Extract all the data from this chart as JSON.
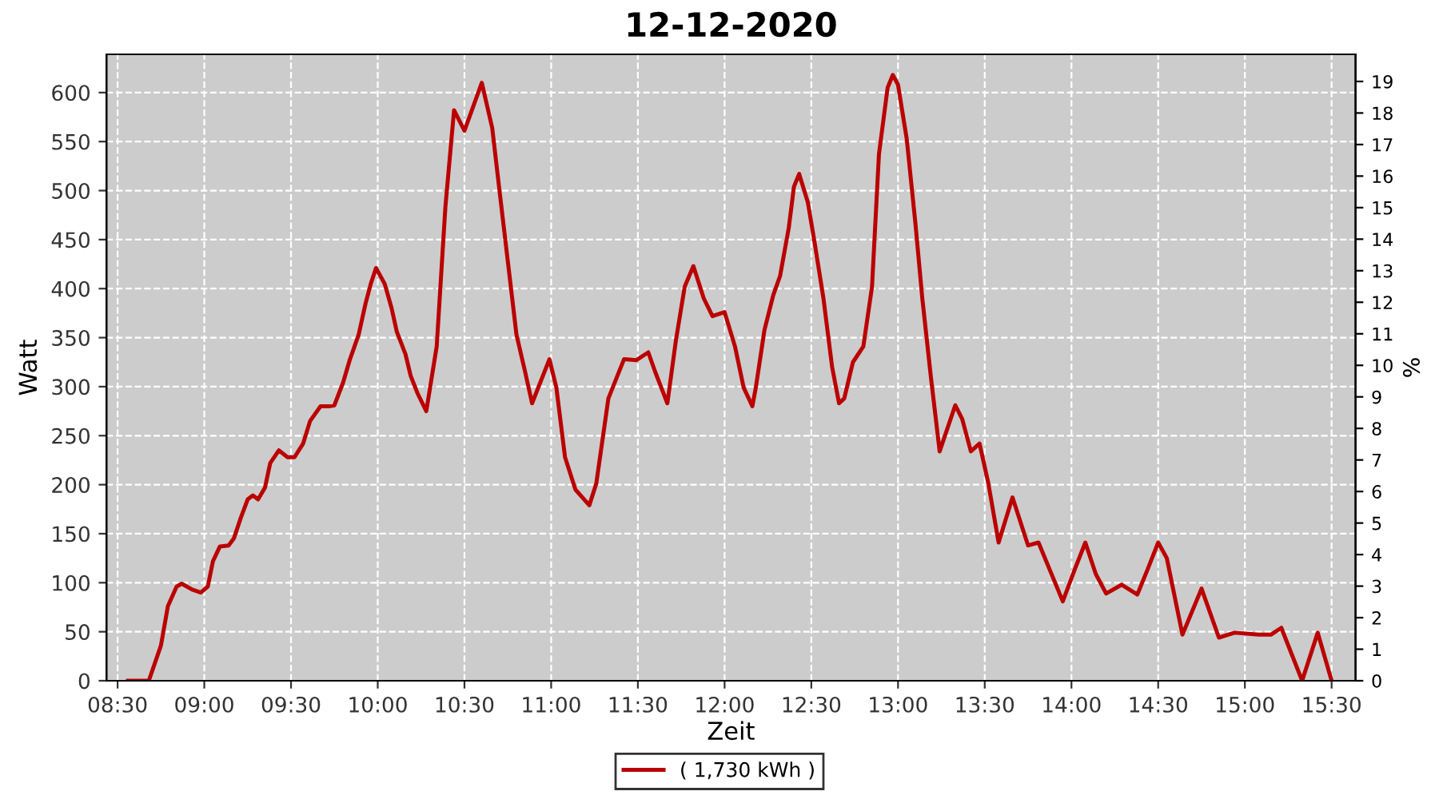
{
  "chart_data": {
    "type": "line",
    "title": "12-12-2020",
    "xlabel": "Zeit",
    "ylabel": "Watt",
    "y2label": "%",
    "xlim": [
      8.436,
      15.638
    ],
    "xticks": [
      {
        "value": 8.5,
        "label": "08:30"
      },
      {
        "value": 9,
        "label": "09:00"
      },
      {
        "value": 9.5,
        "label": "09:30"
      },
      {
        "value": 10,
        "label": "10:00"
      },
      {
        "value": 10.5,
        "label": "10:30"
      },
      {
        "value": 11,
        "label": "11:00"
      },
      {
        "value": 11.5,
        "label": "11:30"
      },
      {
        "value": 12,
        "label": "12:00"
      },
      {
        "value": 12.5,
        "label": "12:30"
      },
      {
        "value": 13,
        "label": "13:00"
      },
      {
        "value": 13.5,
        "label": "13:30"
      },
      {
        "value": 14,
        "label": "14:00"
      },
      {
        "value": 14.5,
        "label": "14:30"
      },
      {
        "value": 15,
        "label": "15:00"
      },
      {
        "value": 15.5,
        "label": "15:30"
      }
    ],
    "ylim": [
      0,
      639
    ],
    "yticks": [
      0,
      50,
      100,
      150,
      200,
      250,
      300,
      350,
      400,
      450,
      500,
      550,
      600
    ],
    "y2lim": [
      0,
      19.86
    ],
    "y2ticks": [
      0,
      1,
      2,
      3,
      4,
      5,
      6,
      7,
      8,
      9,
      10,
      11,
      12,
      13,
      14,
      15,
      16,
      17,
      18,
      19
    ],
    "grid": true,
    "legend": "bottom",
    "marker": "none",
    "line_style": "solid",
    "series": [
      {
        "name": "( 1,730 kWh )",
        "color": "#bb0000",
        "x": [
          8.56,
          8.68,
          8.75,
          8.79,
          8.84,
          8.87,
          8.93,
          8.98,
          9.02,
          9.05,
          9.09,
          9.14,
          9.17,
          9.21,
          9.25,
          9.28,
          9.31,
          9.35,
          9.38,
          9.43,
          9.48,
          9.52,
          9.57,
          9.61,
          9.67,
          9.72,
          9.75,
          9.8,
          9.84,
          9.89,
          9.93,
          9.96,
          9.99,
          10.04,
          10.08,
          10.11,
          10.16,
          10.19,
          10.23,
          10.28,
          10.34,
          10.39,
          10.44,
          10.5,
          10.6,
          10.66,
          10.71,
          10.76,
          10.8,
          10.85,
          10.89,
          10.99,
          11.03,
          11.08,
          11.14,
          11.22,
          11.26,
          11.33,
          11.42,
          11.49,
          11.56,
          11.6,
          11.67,
          11.72,
          11.77,
          11.82,
          11.88,
          11.93,
          12.0,
          12.06,
          12.11,
          12.16,
          12.18,
          12.23,
          12.28,
          12.32,
          12.37,
          12.4,
          12.43,
          12.48,
          12.52,
          12.57,
          12.62,
          12.66,
          12.69,
          12.74,
          12.8,
          12.85,
          12.89,
          12.94,
          12.97,
          13.0,
          13.05,
          13.1,
          13.14,
          13.19,
          13.24,
          13.33,
          13.37,
          13.42,
          13.47,
          13.52,
          13.58,
          13.66,
          13.75,
          13.81,
          13.95,
          14.02,
          14.08,
          14.14,
          14.2,
          14.29,
          14.38,
          14.44,
          14.5,
          14.55,
          14.64,
          14.75,
          14.85,
          14.94,
          15.08,
          15.15,
          15.21,
          15.33,
          15.42,
          15.5
        ],
        "values": [
          0,
          0,
          36,
          76,
          96,
          99,
          93,
          90,
          96,
          122,
          137,
          138,
          145,
          166,
          185,
          189,
          185,
          197,
          222,
          235,
          228,
          228,
          242,
          265,
          280,
          280,
          281,
          304,
          328,
          353,
          385,
          405,
          421,
          405,
          380,
          356,
          333,
          311,
          293,
          275,
          341,
          483,
          582,
          561,
          610,
          564,
          488,
          413,
          353,
          315,
          283,
          328,
          299,
          228,
          195,
          179,
          201,
          288,
          328,
          327,
          335,
          315,
          283,
          348,
          402,
          423,
          390,
          372,
          376,
          341,
          299,
          280,
          299,
          358,
          393,
          413,
          462,
          504,
          517,
          488,
          446,
          390,
          320,
          283,
          288,
          325,
          341,
          402,
          537,
          605,
          618,
          608,
          553,
          467,
          390,
          309,
          234,
          281,
          267,
          234,
          242,
          202,
          141,
          187,
          138,
          141,
          81,
          114,
          141,
          109,
          89,
          98,
          88,
          114,
          141,
          125,
          47,
          94,
          44,
          49,
          47,
          47,
          54,
          0,
          49,
          0
        ]
      }
    ]
  }
}
